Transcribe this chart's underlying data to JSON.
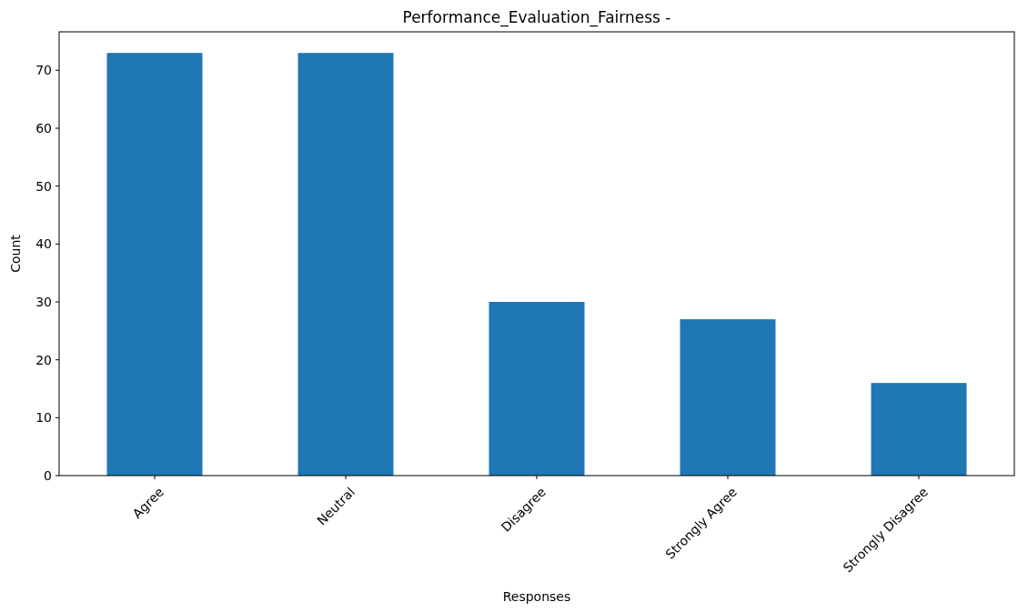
{
  "chart_data": {
    "type": "bar",
    "title": "Performance_Evaluation_Fairness -",
    "xlabel": "Responses",
    "ylabel": "Count",
    "categories": [
      "Agree",
      "Neutral",
      "Disagree",
      "Strongly Agree",
      "Strongly Disagree"
    ],
    "values": [
      73,
      73,
      30,
      27,
      16
    ],
    "color": "#1f77b4",
    "ylim": [
      0,
      76.65
    ],
    "yticks": [
      0,
      10,
      20,
      30,
      40,
      50,
      60,
      70
    ],
    "grid": false
  }
}
